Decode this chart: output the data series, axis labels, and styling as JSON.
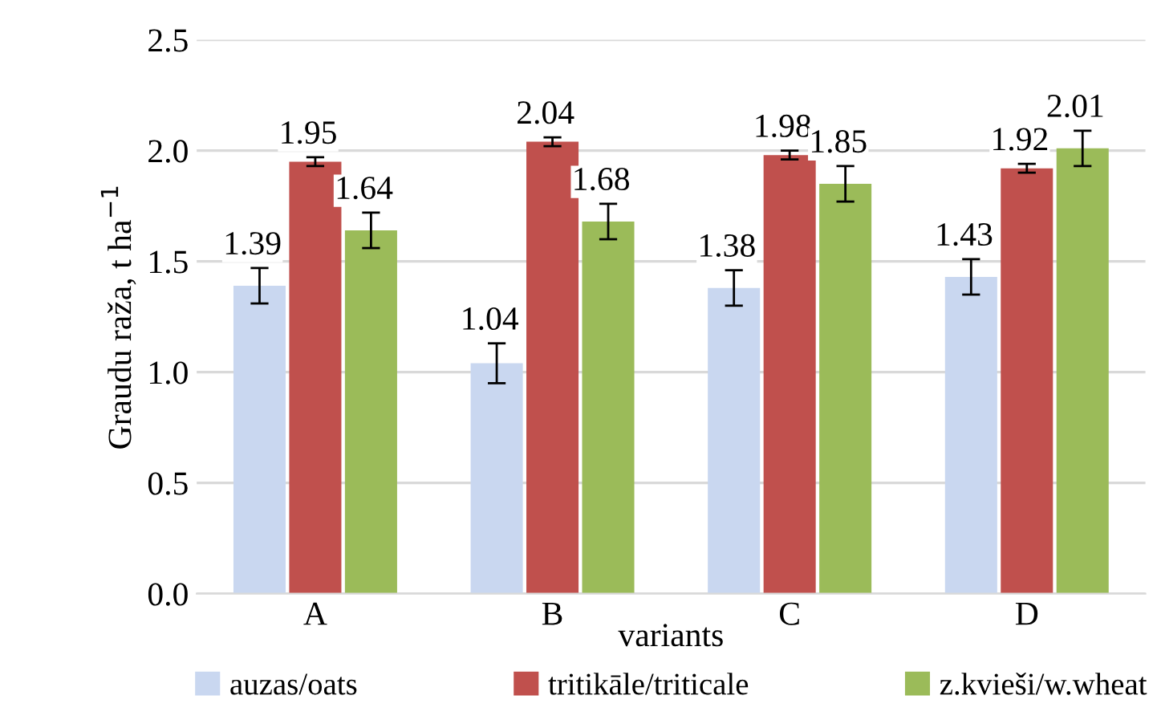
{
  "chart_data": {
    "type": "bar",
    "ylabel": "Graudu raža, t ha$^{−1}$",
    "xlabel": "variants",
    "categories": [
      "A",
      "B",
      "C",
      "D"
    ],
    "series": [
      {
        "name": "auzas/oats",
        "color": "#c9d7f0",
        "values": [
          1.39,
          1.04,
          1.38,
          1.43
        ],
        "errors": [
          0.08,
          0.09,
          0.08,
          0.08
        ]
      },
      {
        "name": "tritikāle/triticale",
        "color": "#c0504d",
        "values": [
          1.95,
          2.04,
          1.98,
          1.92
        ],
        "errors": [
          0.02,
          0.02,
          0.02,
          0.02
        ]
      },
      {
        "name": "z.kvieši/w.wheat",
        "color": "#9bbb59",
        "values": [
          1.64,
          1.68,
          1.85,
          2.01
        ],
        "errors": [
          0.08,
          0.08,
          0.08,
          0.08
        ]
      }
    ],
    "ylim": [
      0,
      2.5
    ],
    "yticks": [
      {
        "value": 0,
        "label": "0.0"
      },
      {
        "value": 0.5,
        "label": "0.5"
      },
      {
        "value": 1,
        "label": "1.0"
      },
      {
        "value": 1.5,
        "label": "1.5"
      },
      {
        "value": 2,
        "label": "2.0"
      },
      {
        "value": 2.5,
        "label": "2.5"
      }
    ],
    "grid": "y",
    "legend": "bottom",
    "data_labels": true
  }
}
